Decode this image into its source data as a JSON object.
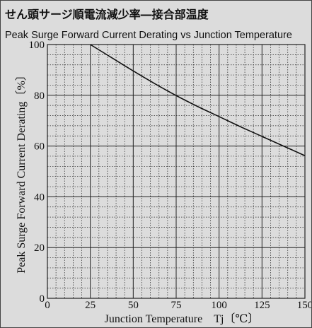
{
  "titles": {
    "jp": "せん頭サージ順電流減少率―接合部温度",
    "en": "Peak Surge Forward Current Derating vs Junction Temperature"
  },
  "chart_data": {
    "type": "line",
    "xlabel": "Junction Temperature　Tj〔℃〕",
    "ylabel": "Peak Surge Forward Current Derating〔%〕",
    "xlim": [
      0,
      150
    ],
    "ylim": [
      0,
      100
    ],
    "x_ticks": [
      0,
      25,
      50,
      75,
      100,
      125,
      150
    ],
    "y_ticks": [
      0,
      20,
      40,
      60,
      80,
      100
    ],
    "grid": true,
    "series": [
      {
        "x": [
          25,
          37.5,
          50,
          62.5,
          75,
          87.5,
          100,
          112.5,
          125,
          137.5,
          150
        ],
        "y": [
          100,
          94.8,
          89.6,
          84.6,
          79.9,
          75.6,
          71.6,
          67.6,
          63.8,
          60.0,
          56.2
        ]
      }
    ]
  }
}
